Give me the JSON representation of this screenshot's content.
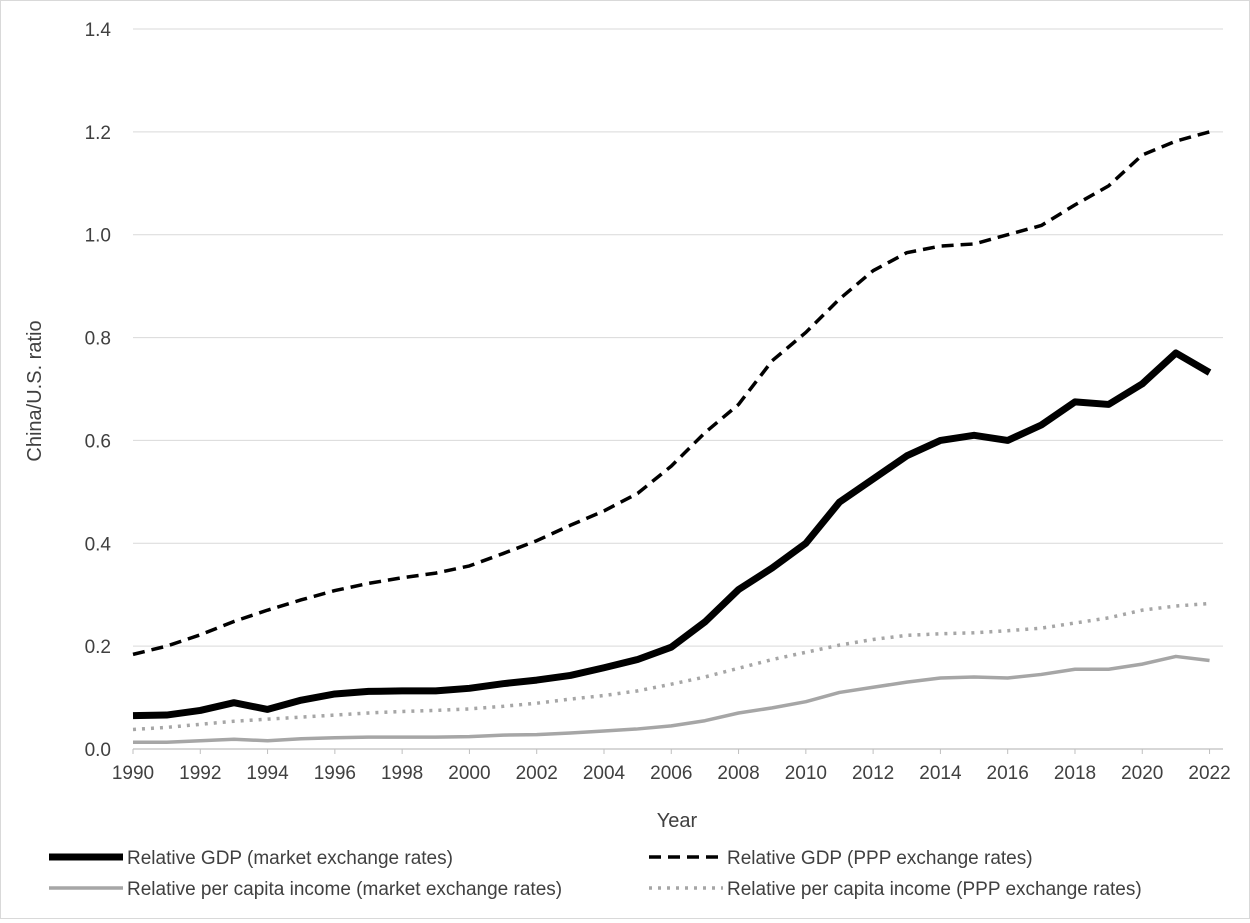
{
  "chart_data": {
    "type": "line",
    "title": "",
    "xlabel": "Year",
    "ylabel": "China/U.S. ratio",
    "ylim": [
      0,
      1.4
    ],
    "yticks": [
      "0.0",
      "0.2",
      "0.4",
      "0.6",
      "0.8",
      "1.0",
      "1.2",
      "1.4"
    ],
    "xticks": [
      "1990",
      "1992",
      "1994",
      "1996",
      "1998",
      "2000",
      "2002",
      "2004",
      "2006",
      "2008",
      "2010",
      "2012",
      "2014",
      "2016",
      "2018",
      "2020",
      "2022"
    ],
    "grid": "horizontal",
    "legend_position": "bottom",
    "x": [
      1990,
      1991,
      1992,
      1993,
      1994,
      1995,
      1996,
      1997,
      1998,
      1999,
      2000,
      2001,
      2002,
      2003,
      2004,
      2005,
      2006,
      2007,
      2008,
      2009,
      2010,
      2011,
      2012,
      2013,
      2014,
      2015,
      2016,
      2017,
      2018,
      2019,
      2020,
      2021,
      2022
    ],
    "series": [
      {
        "name": "Relative GDP (market exchange rates)",
        "color": "#000000",
        "style": "solid-thick",
        "values": [
          0.065,
          0.066,
          0.075,
          0.09,
          0.077,
          0.095,
          0.107,
          0.112,
          0.113,
          0.113,
          0.118,
          0.127,
          0.134,
          0.143,
          0.158,
          0.174,
          0.198,
          0.247,
          0.31,
          0.352,
          0.4,
          0.48,
          0.525,
          0.57,
          0.6,
          0.61,
          0.6,
          0.63,
          0.675,
          0.67,
          0.71,
          0.77,
          0.732
        ]
      },
      {
        "name": "Relative GDP (PPP exchange rates)",
        "color": "#000000",
        "style": "dashed",
        "values": [
          0.184,
          0.2,
          0.222,
          0.248,
          0.27,
          0.29,
          0.308,
          0.322,
          0.333,
          0.342,
          0.356,
          0.38,
          0.405,
          0.435,
          0.463,
          0.497,
          0.55,
          0.615,
          0.67,
          0.755,
          0.81,
          0.875,
          0.93,
          0.965,
          0.978,
          0.982,
          1.0,
          1.018,
          1.058,
          1.095,
          1.155,
          1.182,
          1.2
        ]
      },
      {
        "name": "Relative per capita income (market exchange rates)",
        "color": "#a6a6a6",
        "style": "solid",
        "values": [
          0.013,
          0.013,
          0.016,
          0.019,
          0.016,
          0.02,
          0.022,
          0.023,
          0.023,
          0.023,
          0.024,
          0.027,
          0.028,
          0.031,
          0.035,
          0.039,
          0.045,
          0.055,
          0.07,
          0.08,
          0.092,
          0.11,
          0.12,
          0.13,
          0.138,
          0.14,
          0.138,
          0.145,
          0.155,
          0.155,
          0.165,
          0.18,
          0.172
        ]
      },
      {
        "name": "Relative per capita income (PPP exchange rates)",
        "color": "#a6a6a6",
        "style": "dotted",
        "values": [
          0.038,
          0.042,
          0.048,
          0.054,
          0.058,
          0.062,
          0.066,
          0.07,
          0.073,
          0.075,
          0.078,
          0.083,
          0.089,
          0.097,
          0.104,
          0.113,
          0.126,
          0.14,
          0.157,
          0.174,
          0.188,
          0.202,
          0.213,
          0.221,
          0.224,
          0.226,
          0.23,
          0.235,
          0.245,
          0.255,
          0.27,
          0.278,
          0.283
        ]
      }
    ]
  }
}
